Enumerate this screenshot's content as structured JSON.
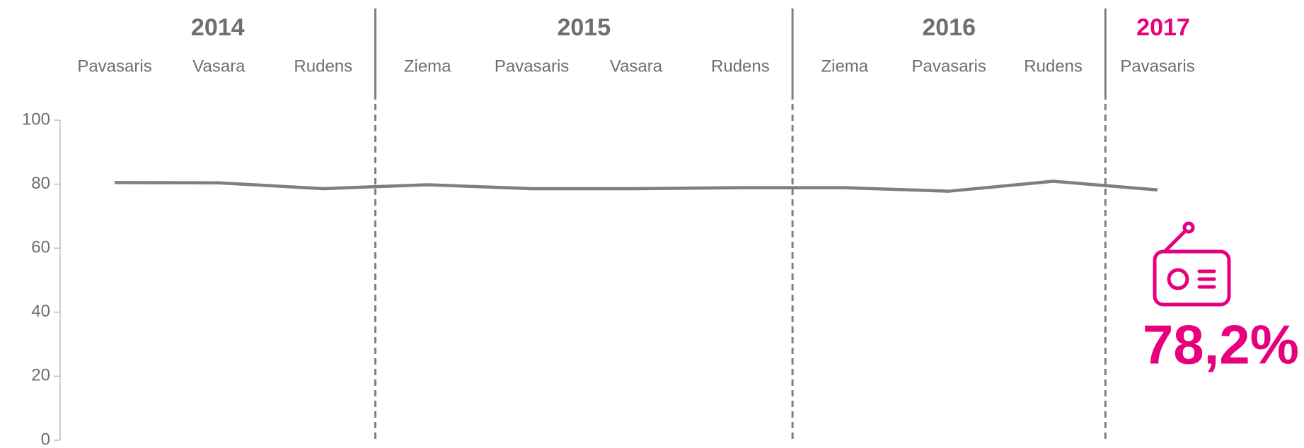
{
  "chart_data": {
    "type": "line",
    "categories": [
      "Pavasaris",
      "Vasara",
      "Rudens",
      "Ziema",
      "Pavasaris",
      "Vasara",
      "Rudens",
      "Ziema",
      "Pavasaris",
      "Rudens",
      "Pavasaris"
    ],
    "groups": [
      {
        "label": "2014",
        "size": 3,
        "color": "#6e6e6e"
      },
      {
        "label": "2015",
        "size": 4,
        "color": "#6e6e6e"
      },
      {
        "label": "2016",
        "size": 3,
        "color": "#6e6e6e"
      },
      {
        "label": "2017",
        "size": 1,
        "color": "#e6007e"
      }
    ],
    "series": [
      {
        "name": null,
        "color": "#7f7f7f",
        "values": [
          80.5,
          80.4,
          78.6,
          79.8,
          78.6,
          78.6,
          78.9,
          78.9,
          77.8,
          80.9,
          78.2
        ],
        "value_labels": [
          null,
          null,
          null,
          null,
          null,
          null,
          null,
          null,
          null,
          null,
          "78,2%"
        ],
        "label_color": "#e6007e"
      }
    ],
    "ylim": [
      0,
      100
    ],
    "yticks": [
      0,
      20,
      40,
      60,
      80,
      100
    ],
    "grid": false
  }
}
